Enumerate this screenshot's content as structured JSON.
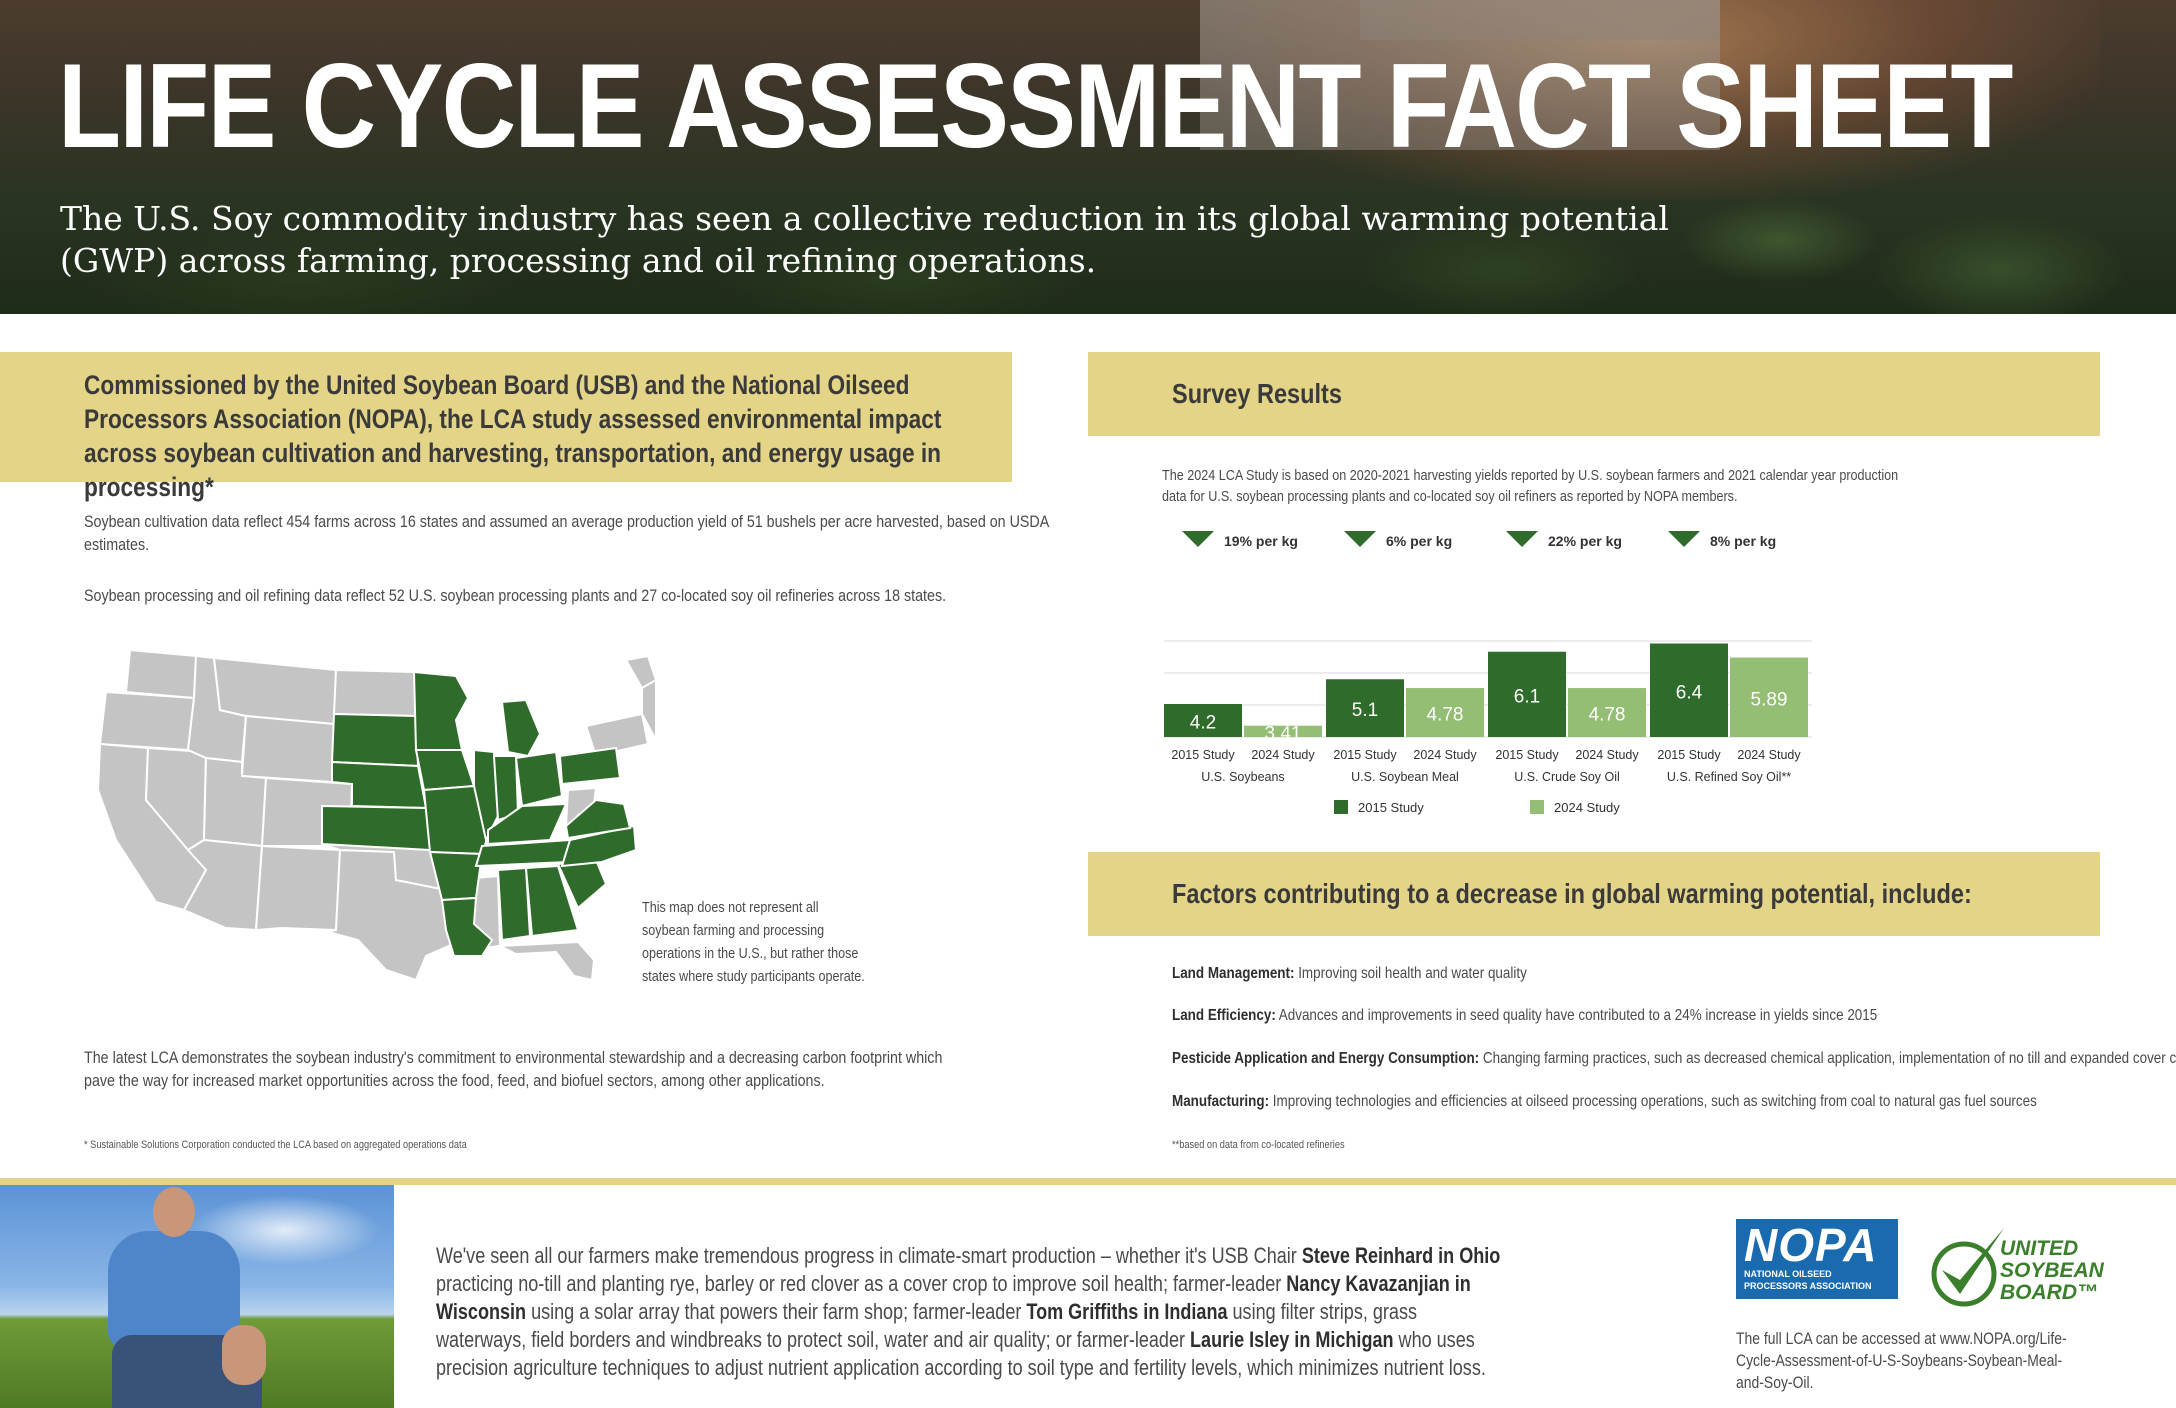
{
  "hero": {
    "title": "LIFE CYCLE ASSESSMENT FACT SHEET",
    "subtitle": "The U.S. Soy commodity industry has seen a collective reduction in its global warming potential (GWP) across farming, processing and oil refining operations."
  },
  "intro": {
    "heading": "Commissioned by the United Soybean Board (USB) and the National Oilseed Processors Association (NOPA), the LCA study assessed environmental impact across soybean cultivation and harvesting, transportation, and energy usage in processing*",
    "para1": "Soybean cultivation data reflect 454 farms across 16 states and assumed an average production yield of 51 bushels per acre harvested, based on USDA estimates.",
    "para2": "Soybean processing and oil refining data reflect 52 U.S. soybean processing plants and 27 co-located soy oil refineries across 18 states.",
    "map_note": "This map does not represent all soybean farming and processing operations in the U.S., but rather those states where study participants operate.",
    "para3": "The latest LCA demonstrates the soybean industry's commitment to environmental stewardship and a decreasing carbon footprint which pave the way for increased market opportunities across the food, feed, and biofuel sectors, among other applications.",
    "footnote": "* Sustainable Solutions Corporation conducted the LCA based on aggregated operations data"
  },
  "map": {
    "highlight_color": "#2f6b2a",
    "base_color": "#c4c4c4"
  },
  "survey": {
    "heading": "Survey Results",
    "note": "The 2024 LCA Study is based on 2020-2021 harvesting yields reported by U.S. soybean farmers and 2021 calendar year production data for U.S. soybean processing plants and co-located soy oil refiners as reported by NOPA members.",
    "footnote": "**based on data from co-located refineries"
  },
  "chart_data": {
    "type": "bar",
    "categories": [
      "U.S. Soybeans",
      "U.S. Soybean Meal",
      "U.S. Crude Soy Oil",
      "U.S. Refined Soy Oil**"
    ],
    "bar_labels": [
      "2015 Study",
      "2024 Study"
    ],
    "series": [
      {
        "name": "2015 Study",
        "color": "#2f6b2a",
        "values": [
          4.2,
          5.1,
          6.1,
          6.4
        ]
      },
      {
        "name": "2024 Study",
        "color": "#93be73",
        "values": [
          3.41,
          4.78,
          4.78,
          5.89
        ]
      }
    ],
    "reductions": [
      "19% per kg",
      "6% per kg",
      "22% per kg",
      "8% per kg"
    ],
    "ylim": [
      0,
      7
    ],
    "legend_position": "bottom",
    "grid": true
  },
  "factors": {
    "heading": "Factors contributing to a decrease in global warming potential, include:",
    "items": [
      {
        "label": "Land Management:",
        "text": " Improving soil health and water quality"
      },
      {
        "label": "Land Efficiency:",
        "text": " Advances and improvements in seed quality have contributed to a 24% increase in yields since 2015"
      },
      {
        "label": "Pesticide Application and Energy Consumption:",
        "text": " Changing farming practices, such as decreased chemical application, implementation of no till and expanded cover crops"
      },
      {
        "label": "Manufacturing:",
        "text": " Improving technologies and efficiencies at oilseed processing operations, such as switching from coal to natural gas fuel sources"
      }
    ]
  },
  "quote": {
    "t1": "We've seen all our farmers make tremendous progress in climate-smart production – whether it's USB Chair ",
    "b1": "Steve Reinhard in Ohio",
    "t2": " practicing no-till and planting rye, barley or red clover as a cover crop to improve soil health; farmer-leader ",
    "b2": "Nancy Kavazanjian in Wisconsin",
    "t3": " using a solar array that powers their farm shop; farmer-leader ",
    "b3": "Tom Griffiths in Indiana",
    "t4": " using filter strips, grass waterways, field borders and windbreaks to protect soil, water and air quality; or farmer-leader ",
    "b4": "Laurie Isley in Michigan",
    "t5": " who uses precision agriculture techniques to adjust nutrient application according to soil type and fertility levels, which minimizes nutrient loss."
  },
  "logos": {
    "nopa_big": "NOPA",
    "nopa_small_1": "NATIONAL OILSEED",
    "nopa_small_2": "PROCESSORS ASSOCIATION",
    "usb_1": "UNITED",
    "usb_2": "SOYBEAN",
    "usb_3": "BOARD™",
    "link_text": "The full LCA can be accessed at www.NOPA.org/Life-Cycle-Assessment-of-U-S-Soybeans-Soybean-Meal-and-Soy-Oil."
  }
}
